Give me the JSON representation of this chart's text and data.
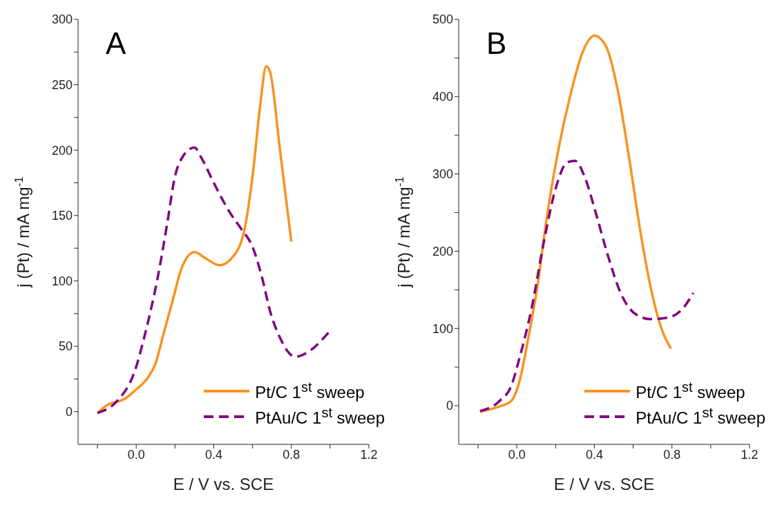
{
  "chart_data": [
    {
      "type": "line",
      "xlabel": "E / V vs. SCE",
      "ylabel": "j (Pt) / mA mg$^{-1}$",
      "annotations": [
        "A"
      ],
      "xlim": [
        -0.3,
        1.2
      ],
      "xticks": [
        {
          "value": -0.2,
          "label": null
        },
        {
          "value": 0,
          "label": "0.0"
        },
        {
          "value": 0.2,
          "label": null
        },
        0.4,
        {
          "value": 0.6,
          "label": null
        },
        0.8,
        {
          "value": 1.0,
          "label": null
        },
        1.2
      ],
      "ylim": [
        -25,
        300
      ],
      "yticks": [
        0,
        {
          "value": 25,
          "label": null
        },
        50,
        {
          "value": 75,
          "label": null
        },
        100,
        {
          "value": 125,
          "label": null
        },
        150,
        {
          "value": 175,
          "label": null
        },
        200,
        {
          "value": 225,
          "label": null
        },
        250,
        {
          "value": 275,
          "label": null
        },
        300
      ],
      "legend": "bottom right",
      "series": [
        {
          "name": "Pt/C 1$^{st}$ sweep",
          "color": "#f7931e",
          "line_style": "solid",
          "x": [
            -0.2,
            -0.15,
            -0.057,
            0.0,
            0.06,
            0.1,
            0.14,
            0.19,
            0.23,
            0.3,
            0.36,
            0.43,
            0.49,
            0.555,
            0.6,
            0.64,
            0.67,
            0.69,
            0.74,
            0.8
          ],
          "values": [
            -1,
            5,
            10,
            17,
            26,
            37,
            59,
            86,
            108,
            122,
            117,
            112,
            117,
            137,
            180,
            235,
            264,
            260,
            202,
            130
          ]
        },
        {
          "name": "PtAu/C 1$^{st}$ sweep",
          "color": "#800080",
          "line_style": "dashed",
          "x": [
            -0.2,
            -0.1,
            -0.01,
            0.05,
            0.11,
            0.16,
            0.2,
            0.24,
            0.3,
            0.34,
            0.4,
            0.48,
            0.54,
            0.6,
            0.65,
            0.69,
            0.74,
            0.82,
            0.89,
            1.0
          ],
          "values": [
            -1,
            8,
            30,
            62,
            102,
            144,
            180,
            195,
            202,
            193,
            175,
            153,
            140,
            126,
            102,
            77,
            57,
            42,
            46,
            62
          ]
        }
      ]
    },
    {
      "type": "line",
      "xlabel": "E / V vs. SCE",
      "ylabel": "j (Pt) / mA mg$^{-1}$",
      "annotations": [
        "B"
      ],
      "xlim": [
        -0.3,
        1.2
      ],
      "xticks": [
        {
          "value": -0.2,
          "label": null
        },
        {
          "value": 0,
          "label": "0.0"
        },
        {
          "value": 0.2,
          "label": null
        },
        0.4,
        {
          "value": 0.6,
          "label": null
        },
        0.8,
        {
          "value": 1.0,
          "label": null
        },
        1.2
      ],
      "ylim": [
        -50,
        500
      ],
      "yticks": [
        0,
        {
          "value": 50,
          "label": null
        },
        100,
        {
          "value": 150,
          "label": null
        },
        200,
        {
          "value": 250,
          "label": null
        },
        300,
        {
          "value": 350,
          "label": null
        },
        400,
        {
          "value": 450,
          "label": null
        },
        500
      ],
      "legend": "bottom right",
      "series": [
        {
          "name": "Pt/C 1$^{st}$ sweep",
          "color": "#f7931e",
          "line_style": "solid",
          "x": [
            -0.19,
            -0.09,
            -0.03,
            0.015,
            0.06,
            0.11,
            0.15,
            0.21,
            0.275,
            0.34,
            0.4,
            0.46,
            0.52,
            0.58,
            0.64,
            0.7,
            0.75,
            0.795
          ],
          "values": [
            -8,
            -1,
            6,
            33,
            89,
            161,
            236,
            326,
            401,
            458,
            479,
            465,
            409,
            319,
            221,
            142,
            97,
            74
          ]
        },
        {
          "name": "PtAu/C 1$^{st}$ sweep",
          "color": "#800080",
          "line_style": "dashed",
          "x": [
            -0.19,
            -0.09,
            -0.03,
            0.015,
            0.077,
            0.14,
            0.2,
            0.26,
            0.3,
            0.35,
            0.41,
            0.47,
            0.535,
            0.61,
            0.69,
            0.78,
            0.86,
            0.91
          ],
          "values": [
            -7,
            6,
            25,
            63,
            127,
            213,
            281,
            315,
            317,
            296,
            247,
            194,
            146,
            119,
            112,
            114,
            127,
            146
          ]
        }
      ]
    }
  ]
}
